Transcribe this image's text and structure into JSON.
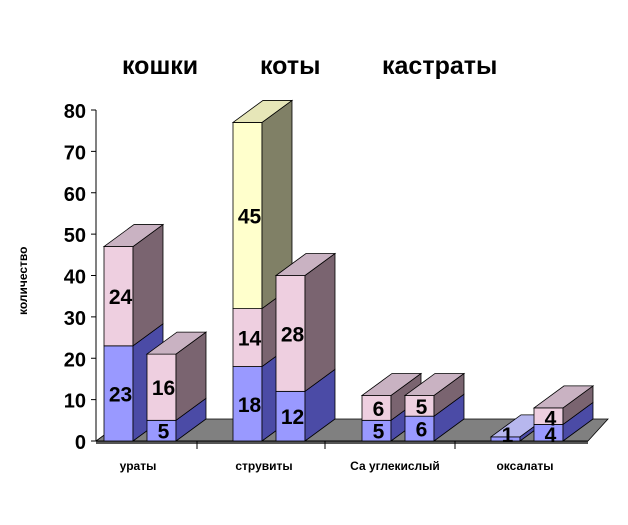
{
  "legend": {
    "items": [
      {
        "label": "кошки",
        "color": "#9999ff"
      },
      {
        "label": "коты",
        "color": "#eecfe0"
      },
      {
        "label": "кастраты",
        "color": "#ffffcc"
      }
    ]
  },
  "chart_data": {
    "type": "bar",
    "stacked": true,
    "three_d": true,
    "ylabel": "количество",
    "xlabel": "",
    "ylim": [
      0,
      80
    ],
    "yticks": [
      "0",
      "10",
      "20",
      "30",
      "40",
      "50",
      "60",
      "70",
      "80"
    ],
    "categories": [
      "ураты",
      "струвиты",
      "Са углекислый",
      "оксалаты"
    ],
    "bars": [
      {
        "category": "ураты",
        "segments": [
          23,
          24
        ]
      },
      {
        "category": "ураты",
        "segments": [
          5,
          16
        ]
      },
      {
        "category": "струвиты",
        "segments": [
          18,
          14,
          45
        ]
      },
      {
        "category": "струвиты",
        "segments": [
          12,
          28
        ]
      },
      {
        "category": "Са углекислый",
        "segments": [
          5,
          6
        ]
      },
      {
        "category": "Са углекислый",
        "segments": [
          6,
          5
        ]
      },
      {
        "category": "оксалаты",
        "segments": [
          1
        ]
      },
      {
        "category": "оксалаты",
        "segments": [
          4,
          4
        ]
      }
    ],
    "segment_colors": [
      "#9999ff",
      "#eecfe0",
      "#ffffcc"
    ]
  }
}
